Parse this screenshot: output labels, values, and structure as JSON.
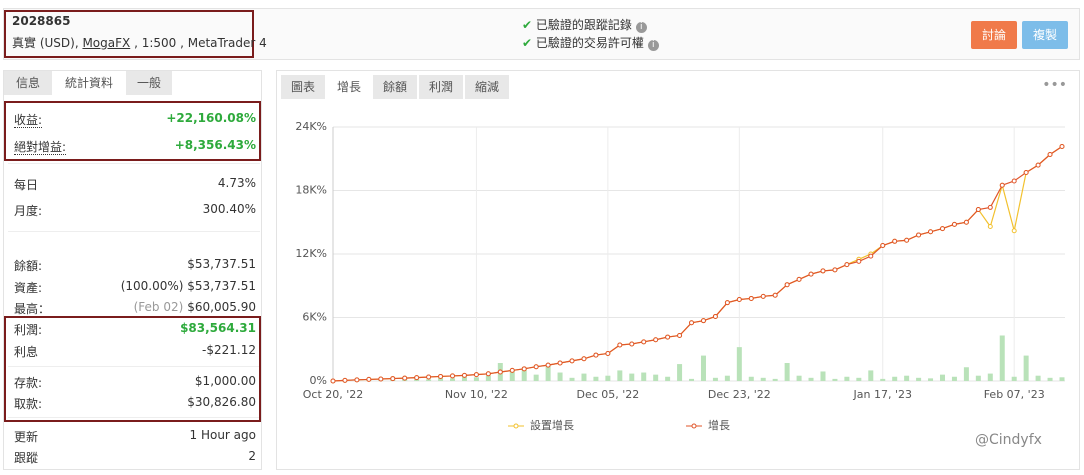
{
  "header": {
    "account": "2028865",
    "details_prefix": "真實 (USD), ",
    "broker": "MogaFX",
    "details_suffix": " , 1:500 , MetaTrader 4",
    "verified": [
      "已驗證的跟蹤記錄",
      "已驗證的交易許可權"
    ],
    "buttons": [
      "討論",
      "複製"
    ]
  },
  "left_tabs": [
    "信息",
    "統計資料",
    "一般"
  ],
  "left_active": 1,
  "stats": [
    {
      "label": "收益:",
      "value": "+22,160.08%",
      "color": "#2eaa3c"
    },
    {
      "label": "絕對增益:",
      "value": "+8,356.43%",
      "color": "#2eaa3c"
    },
    {
      "label": "每日",
      "value": "4.73%"
    },
    {
      "label": "月度:",
      "value": "300.40%"
    },
    {
      "label": "餘額:",
      "value": "$53,737.51"
    },
    {
      "label": "資產:",
      "value": "(100.00%) $53,737.51"
    },
    {
      "label": "最高：",
      "note": "(Feb 02)",
      "value": "$60,005.90"
    },
    {
      "label": "利潤:",
      "value": "$83,564.31",
      "color": "#2eaa3c"
    },
    {
      "label": "利息",
      "value": "-$221.12"
    },
    {
      "label": "存款:",
      "value": "$1,000.00"
    },
    {
      "label": "取款:",
      "value": "$30,826.80"
    },
    {
      "label": "更新",
      "value": "1 Hour ago"
    },
    {
      "label": "跟蹤",
      "value": "2"
    }
  ],
  "chart_tabs": [
    "圖表",
    "增長",
    "餘額",
    "利潤",
    "縮減"
  ],
  "chart_active": 1,
  "chart_data": {
    "type": "line",
    "categories": [
      "Oct 20, '22",
      null,
      null,
      null,
      null,
      null,
      null,
      null,
      null,
      null,
      null,
      null,
      "Nov 10, '22",
      null,
      null,
      null,
      null,
      null,
      null,
      null,
      null,
      null,
      null,
      "Dec 05, '22",
      null,
      null,
      null,
      null,
      null,
      null,
      null,
      null,
      null,
      null,
      "Dec 23, '22",
      null,
      null,
      null,
      null,
      null,
      null,
      null,
      null,
      null,
      null,
      null,
      "Jan 17, '23",
      null,
      null,
      null,
      null,
      null,
      null,
      null,
      null,
      null,
      null,
      "Feb 07, '23",
      null,
      null,
      null,
      null
    ],
    "series": [
      {
        "name": "設置增長",
        "color": "#f2c12e",
        "values": [
          0,
          60,
          110,
          150,
          190,
          230,
          270,
          320,
          380,
          430,
          480,
          530,
          600,
          680,
          850,
          1000,
          1150,
          1350,
          1500,
          1700,
          1900,
          2100,
          2450,
          2600,
          3400,
          3500,
          3700,
          3900,
          4150,
          4300,
          5500,
          5700,
          6100,
          7400,
          7700,
          7800,
          8000,
          8100,
          9100,
          9600,
          10100,
          10400,
          10500,
          11000,
          11500,
          12000,
          12800,
          13200,
          13300,
          13800,
          14100,
          14400,
          14800,
          15000,
          16200,
          14600,
          18500,
          14200,
          19700,
          20400,
          21400,
          22160
        ]
      },
      {
        "name": "增長",
        "color": "#e0552a",
        "values": [
          0,
          60,
          110,
          150,
          190,
          230,
          270,
          320,
          380,
          430,
          480,
          530,
          600,
          680,
          850,
          1000,
          1150,
          1350,
          1500,
          1700,
          1900,
          2100,
          2450,
          2600,
          3400,
          3500,
          3700,
          3900,
          4150,
          4300,
          5500,
          5700,
          6100,
          7400,
          7700,
          7800,
          8000,
          8100,
          9100,
          9600,
          10100,
          10400,
          10500,
          11000,
          11300,
          11800,
          12800,
          13200,
          13300,
          13800,
          14100,
          14400,
          14800,
          15000,
          16200,
          16400,
          18500,
          18900,
          19700,
          20400,
          21400,
          22160
        ]
      },
      {
        "type": "bar",
        "color": "#b9e2b9",
        "values": [
          100,
          80,
          120,
          90,
          150,
          110,
          200,
          180,
          160,
          300,
          250,
          400,
          350,
          500,
          1700,
          900,
          1100,
          600,
          1400,
          800,
          300,
          700,
          400,
          500,
          1000,
          700,
          800,
          600,
          400,
          1600,
          200,
          2400,
          300,
          500,
          3200,
          400,
          300,
          200,
          1700,
          500,
          300,
          900,
          200,
          400,
          300,
          1000,
          200,
          400,
          500,
          300,
          250,
          600,
          400,
          1300,
          500,
          700,
          4300,
          400,
          2400,
          500,
          300,
          350
        ]
      }
    ],
    "ylim": [
      0,
      24000
    ],
    "yticks": [
      {
        "value": 0,
        "label": "0%"
      },
      {
        "value": 6000,
        "label": "6K%"
      },
      {
        "value": 12000,
        "label": "12K%"
      },
      {
        "value": 18000,
        "label": "18K%"
      },
      {
        "value": 24000,
        "label": "24K%"
      }
    ],
    "grid": true,
    "legend": "bottom"
  },
  "watermark": "@Cindyfx"
}
